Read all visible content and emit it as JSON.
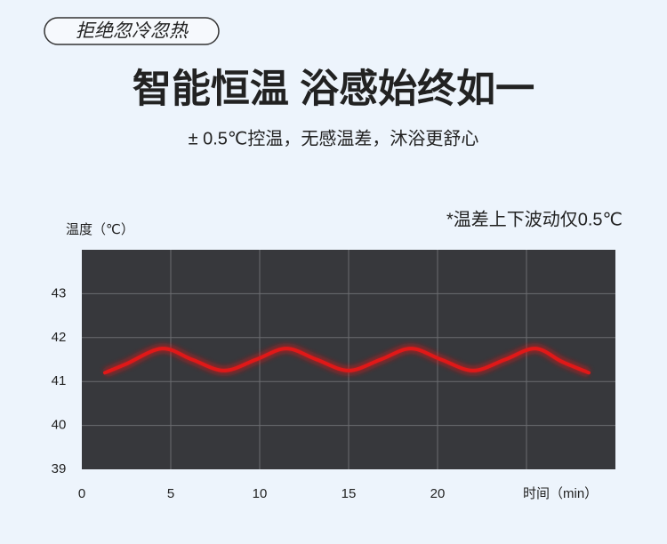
{
  "header": {
    "tag": "拒绝忽冷忽热",
    "title": "智能恒温 浴感始终如一",
    "subtitle": "± 0.5℃控温，无感温差，沐浴更舒心"
  },
  "chart_data": {
    "type": "line",
    "annotation": "*温差上下波动仅0.5℃",
    "y_label": "温度（℃）",
    "x_label": "时间（min）",
    "x": [
      1.3,
      2.5,
      4.5,
      6.2,
      8,
      9.8,
      11.5,
      13.2,
      15,
      16.8,
      18.5,
      20.2,
      22,
      23.8,
      25.5,
      27,
      28.5
    ],
    "series": [
      {
        "color": "#e01818",
        "values": [
          41.2,
          41.4,
          41.75,
          41.5,
          41.25,
          41.5,
          41.75,
          41.5,
          41.25,
          41.5,
          41.75,
          41.5,
          41.25,
          41.5,
          41.75,
          41.45,
          41.2
        ]
      }
    ],
    "xlim": [
      0,
      30
    ],
    "xticks": [
      0,
      5,
      10,
      15,
      20,
      {
        "value": 25,
        "label": null
      }
    ],
    "ylim": [
      39,
      44
    ],
    "yticks": [
      39,
      40,
      41,
      42,
      43
    ],
    "grid": true
  }
}
